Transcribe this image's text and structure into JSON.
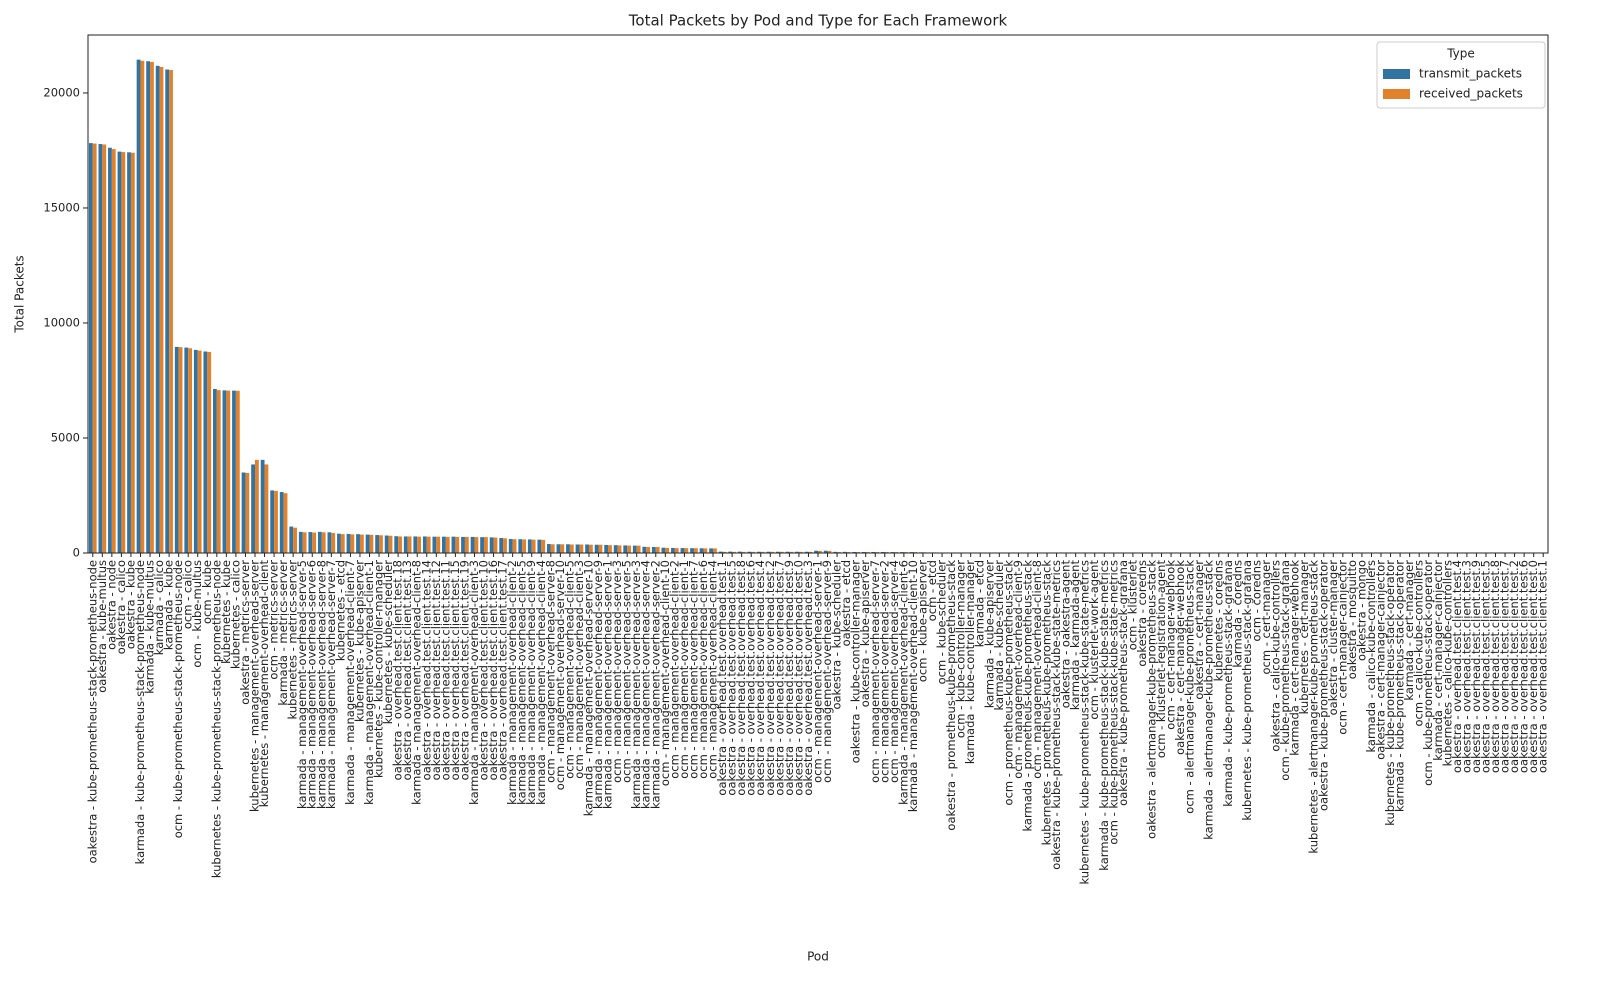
{
  "chart_data": {
    "type": "bar",
    "title": "Total Packets by Pod and Type for Each Framework",
    "xlabel": "Pod",
    "ylabel": "Total Packets",
    "legend_title": "Type",
    "legend": "upper right",
    "categories": [
      "oakestra - kube-prometheus-stack-prometheus-node",
      "oakestra - kube-multus",
      "oakestra - node",
      "oakestra - calico",
      "oakestra - kube",
      "karmada - kube-prometheus-stack-prometheus-node",
      "karmada - kube-multus",
      "karmada - calico",
      "karmada - kube",
      "ocm - kube-prometheus-stack-prometheus-node",
      "ocm - calico",
      "ocm - kube-multus",
      "ocm - kube",
      "kubernetes - kube-prometheus-stack-prometheus-node",
      "kubernetes - kube",
      "kubernetes - calico",
      "oakestra - metrics-server",
      "kubernetes - management-overhead-server",
      "kubernetes - management-overhead-client",
      "ocm - metrics-server",
      "karmada - metrics-server",
      "kubernetes - metrics-server",
      "karmada - management-overhead-server-5",
      "karmada - management-overhead-server-6",
      "karmada - management-overhead-server-8",
      "karmada - management-overhead-server-7",
      "kubernetes - etcd",
      "karmada - management-overhead-client-7",
      "kubernetes - kube-apiserver",
      "karmada - management-overhead-client-1",
      "kubernetes - kube-controller-manager",
      "kubernetes - kube-scheduler",
      "oakestra - overhead.test.client.test.18",
      "oakestra - overhead.test.client.test.13",
      "karmada - management-overhead-client-8",
      "oakestra - overhead.test.client.test.14",
      "oakestra - overhead.test.client.test.12",
      "oakestra - overhead.test.client.test.11",
      "oakestra - overhead.test.client.test.15",
      "oakestra - overhead.test.client.test.19",
      "karmada - management-overhead-client-3",
      "oakestra - overhead.test.client.test.10",
      "oakestra - overhead.test.client.test.16",
      "oakestra - overhead.test.client.test.17",
      "karmada - management-overhead-client-2",
      "karmada - management-overhead-client-5",
      "karmada - management-overhead-client-9",
      "karmada - management-overhead-client-4",
      "ocm - management-overhead-server-8",
      "ocm - management-overhead-server-10",
      "ocm - management-overhead-client-5",
      "ocm - management-overhead-client-3",
      "karmada - management-overhead-server-10",
      "karmada - management-overhead-server-9",
      "karmada - management-overhead-server-1",
      "ocm - management-overhead-server-3",
      "ocm - management-overhead-server-5",
      "karmada - management-overhead-server-3",
      "karmada - management-overhead-server-4",
      "karmada - management-overhead-server-2",
      "ocm - management-overhead-client-10",
      "ocm - management-overhead-client-2",
      "ocm - management-overhead-client-1",
      "ocm - management-overhead-client-7",
      "ocm - management-overhead-client-6",
      "ocm - management-overhead-client-4",
      "oakestra - overhead.test.overhead.test.1",
      "oakestra - overhead.test.overhead.test.5",
      "oakestra - overhead.test.overhead.test.8",
      "oakestra - overhead.test.overhead.test.6",
      "oakestra - overhead.test.overhead.test.4",
      "oakestra - overhead.test.overhead.test.2",
      "oakestra - overhead.test.overhead.test.7",
      "oakestra - overhead.test.overhead.test.9",
      "oakestra - overhead.test.overhead.test.0",
      "oakestra - overhead.test.overhead.test.3",
      "ocm - management-overhead-server-1",
      "ocm - management-overhead-server-9",
      "oakestra - kube-scheduler",
      "oakestra - etcd",
      "oakestra - kube-controller-manager",
      "oakestra - kube-apiserver",
      "ocm - management-overhead-server-7",
      "ocm - management-overhead-server-2",
      "ocm - management-overhead-server-4",
      "karmada - management-overhead-client-6",
      "karmada - management-overhead-client-10",
      "ocm - kube-apiserver",
      "ocm - etcd",
      "ocm - kube-scheduler",
      "oakestra - prometheus-kube-prometheus-stack",
      "ocm - kube-controller-manager",
      "karmada - kube-controller-manager",
      "karmada - etcd",
      "karmada - kube-apiserver",
      "karmada - kube-scheduler",
      "ocm - prometheus-kube-prometheus-stack",
      "ocm - management-overhead-client-9",
      "karmada - prometheus-kube-prometheus-stack",
      "ocm - management-overhead-client-8",
      "kubernetes - prometheus-kube-prometheus-stack",
      "oakestra - kube-prometheus-stack-kube-state-metrics",
      "oakestra - oakestra-agent",
      "karmada - karmada-agent",
      "kubernetes - kube-prometheus-stack-kube-state-metrics",
      "ocm - klusterlet-work-agent",
      "karmada - kube-prometheus-stack-kube-state-metrics",
      "ocm - kube-prometheus-stack-kube-state-metrics",
      "oakestra - kube-prometheus-stack-grafana",
      "ocm - klusterlet",
      "oakestra - coredns",
      "oakestra - alertmanager-kube-prometheus-stack",
      "ocm - klusterlet-registration-agent",
      "ocm - cert-manager-webhook",
      "oakestra - cert-manager-webhook",
      "ocm - alertmanager-kube-prometheus-stack",
      "oakestra - cert-manager",
      "karmada - alertmanager-kube-prometheus-stack",
      "kubernetes - coredns",
      "karmada - kube-prometheus-stack-grafana",
      "karmada - coredns",
      "kubernetes - kube-prometheus-stack-grafana",
      "ocm - coredns",
      "ocm - cert-manager",
      "oakestra - calico-kube-controllers",
      "ocm - kube-prometheus-stack-grafana",
      "karmada - cert-manager-webhook",
      "kubernetes - cert-manager",
      "kubernetes - alertmanager-kube-prometheus-stack",
      "oakestra - kube-prometheus-stack-operator",
      "oakestra - cluster-manager",
      "ocm - cert-manager-cainjector",
      "oakestra - mosquitto",
      "oakestra - mongo",
      "karmada - calico-kube-controllers",
      "oakestra - cert-manager-cainjector",
      "kubernetes - kube-prometheus-stack-operator",
      "karmada - kube-prometheus-stack-operator",
      "karmada - cert-manager",
      "ocm - calico-kube-controllers",
      "ocm - kube-prometheus-stack-operator",
      "karmada - cert-manager-cainjector",
      "kubernetes - calico-kube-controllers",
      "oakestra - overhead.test.client.test.4",
      "oakestra - overhead.test.client.test.3",
      "oakestra - overhead.test.client.test.9",
      "oakestra - overhead.test.client.test.5",
      "oakestra - overhead.test.client.test.8",
      "oakestra - overhead.test.client.test.7",
      "oakestra - overhead.test.client.test.2",
      "oakestra - overhead.test.client.test.6",
      "oakestra - overhead.test.client.test.0",
      "oakestra - overhead.test.client.test.1"
    ],
    "series": [
      {
        "name": "transmit_packets",
        "color": "#3274a1",
        "values": [
          17820,
          17780,
          17620,
          17450,
          17420,
          21450,
          21380,
          21180,
          21020,
          8960,
          8930,
          8830,
          8760,
          7130,
          7070,
          7060,
          3500,
          3850,
          4050,
          2720,
          2650,
          1150,
          920,
          910,
          920,
          900,
          840,
          830,
          820,
          800,
          780,
          760,
          730,
          720,
          720,
          720,
          710,
          710,
          710,
          700,
          700,
          690,
          680,
          650,
          610,
          600,
          590,
          580,
          390,
          380,
          380,
          370,
          370,
          360,
          350,
          340,
          330,
          320,
          270,
          260,
          230,
          220,
          215,
          210,
          205,
          200,
          60,
          60,
          60,
          55,
          55,
          55,
          55,
          55,
          55,
          55,
          100,
          100,
          50,
          50,
          45,
          45,
          45,
          45,
          40,
          40,
          40,
          30,
          25,
          20,
          20,
          20,
          20,
          15,
          15,
          15,
          10,
          10,
          10,
          10,
          8,
          8,
          8,
          8,
          8,
          8,
          8,
          8,
          6,
          6,
          6,
          6,
          6,
          6,
          6,
          6,
          5,
          5,
          5,
          5,
          5,
          5,
          5,
          5,
          5,
          5,
          5,
          5,
          4,
          4,
          4,
          4,
          4,
          4,
          4,
          4,
          3,
          3,
          3,
          3,
          3,
          3,
          3,
          2,
          2,
          2,
          2,
          2,
          2,
          2,
          2,
          2,
          2
        ]
      },
      {
        "name": "received_packets",
        "color": "#e1812c",
        "values": [
          17800,
          17760,
          17560,
          17430,
          17400,
          21400,
          21350,
          21130,
          21000,
          8950,
          8900,
          8800,
          8740,
          7080,
          7060,
          7050,
          3480,
          4050,
          3850,
          2700,
          2600,
          1100,
          900,
          890,
          900,
          870,
          820,
          810,
          800,
          790,
          770,
          750,
          720,
          720,
          710,
          710,
          710,
          700,
          700,
          700,
          690,
          690,
          670,
          640,
          600,
          590,
          580,
          570,
          380,
          380,
          370,
          370,
          360,
          360,
          340,
          330,
          320,
          320,
          260,
          260,
          220,
          210,
          210,
          210,
          200,
          200,
          50,
          50,
          50,
          50,
          50,
          50,
          50,
          50,
          50,
          50,
          90,
          90,
          40,
          40,
          40,
          40,
          40,
          40,
          40,
          40,
          40,
          30,
          25,
          20,
          20,
          20,
          20,
          15,
          15,
          15,
          10,
          10,
          10,
          10,
          8,
          8,
          8,
          8,
          8,
          8,
          8,
          8,
          6,
          6,
          6,
          6,
          6,
          6,
          6,
          6,
          5,
          5,
          5,
          5,
          5,
          5,
          5,
          5,
          5,
          5,
          5,
          5,
          4,
          4,
          4,
          4,
          4,
          4,
          4,
          4,
          3,
          3,
          3,
          3,
          3,
          3,
          3,
          2,
          2,
          2,
          2,
          2,
          2,
          2,
          2,
          2,
          2
        ]
      }
    ],
    "ylim": [
      0,
      22520
    ],
    "yticks": [
      0,
      5000,
      10000,
      15000,
      20000
    ]
  }
}
